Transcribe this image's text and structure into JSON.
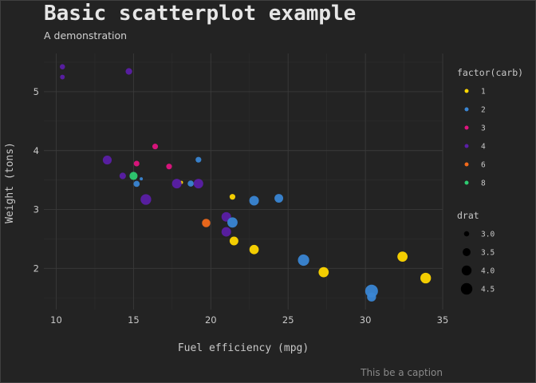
{
  "chart_data": {
    "type": "scatter",
    "title": "Basic scatterplot example",
    "subtitle": "A demonstration",
    "caption": "This be a caption",
    "xlabel": "Fuel efficiency (mpg)",
    "ylabel": "Weight (tons)",
    "xlim": [
      9.2,
      35.0
    ],
    "ylim": [
      1.3,
      5.65
    ],
    "xticks": [
      10,
      15,
      20,
      25,
      30,
      35
    ],
    "yticks": [
      2,
      3,
      4,
      5
    ],
    "grid": true,
    "background": "#232323",
    "grid_major_color": "#3a3a3a",
    "grid_minor_color": "#2e2e2e",
    "text_color": "#c8c8c8",
    "title_color": "#e6e6e6",
    "legend_color": {
      "title": "factor(carb)",
      "position": "right",
      "entries": [
        {
          "label": "1",
          "color": "#FFD700"
        },
        {
          "label": "2",
          "color": "#3A86D4"
        },
        {
          "label": "3",
          "color": "#E0147F"
        },
        {
          "label": "4",
          "color": "#5B1FA6"
        },
        {
          "label": "6",
          "color": "#F26A1B"
        },
        {
          "label": "8",
          "color": "#2ECC71"
        }
      ]
    },
    "legend_size": {
      "title": "drat",
      "position": "right",
      "entries": [
        {
          "label": "3.0",
          "value": 3.0
        },
        {
          "label": "3.5",
          "value": 3.5
        },
        {
          "label": "4.0",
          "value": 4.0
        },
        {
          "label": "4.5",
          "value": 4.5
        }
      ]
    },
    "size_range": [
      2.76,
      4.93
    ],
    "points": [
      {
        "x": 21.0,
        "y": 2.62,
        "carb": "4",
        "drat": 3.9
      },
      {
        "x": 21.0,
        "y": 2.875,
        "carb": "4",
        "drat": 3.9
      },
      {
        "x": 22.8,
        "y": 2.32,
        "carb": "1",
        "drat": 3.85
      },
      {
        "x": 21.4,
        "y": 3.215,
        "carb": "1",
        "drat": 3.08
      },
      {
        "x": 18.7,
        "y": 3.44,
        "carb": "2",
        "drat": 3.15
      },
      {
        "x": 18.1,
        "y": 3.46,
        "carb": "1",
        "drat": 2.76
      },
      {
        "x": 14.3,
        "y": 3.57,
        "carb": "4",
        "drat": 3.21
      },
      {
        "x": 24.4,
        "y": 3.19,
        "carb": "2",
        "drat": 3.69
      },
      {
        "x": 22.8,
        "y": 3.15,
        "carb": "2",
        "drat": 3.92
      },
      {
        "x": 19.2,
        "y": 3.44,
        "carb": "4",
        "drat": 3.92
      },
      {
        "x": 17.8,
        "y": 3.44,
        "carb": "4",
        "drat": 3.92
      },
      {
        "x": 16.4,
        "y": 4.07,
        "carb": "3",
        "drat": 3.07
      },
      {
        "x": 17.3,
        "y": 3.73,
        "carb": "3",
        "drat": 3.07
      },
      {
        "x": 15.2,
        "y": 3.78,
        "carb": "3",
        "drat": 3.07
      },
      {
        "x": 10.4,
        "y": 5.25,
        "carb": "4",
        "drat": 2.93
      },
      {
        "x": 10.4,
        "y": 5.424,
        "carb": "4",
        "drat": 3.0
      },
      {
        "x": 14.7,
        "y": 5.345,
        "carb": "4",
        "drat": 3.23
      },
      {
        "x": 32.4,
        "y": 2.2,
        "carb": "1",
        "drat": 4.08
      },
      {
        "x": 30.4,
        "y": 1.615,
        "carb": "2",
        "drat": 4.93
      },
      {
        "x": 33.9,
        "y": 1.835,
        "carb": "1",
        "drat": 4.22
      },
      {
        "x": 21.5,
        "y": 2.465,
        "carb": "1",
        "drat": 3.7
      },
      {
        "x": 15.5,
        "y": 3.52,
        "carb": "2",
        "drat": 2.76
      },
      {
        "x": 15.2,
        "y": 3.435,
        "carb": "2",
        "drat": 3.15
      },
      {
        "x": 13.3,
        "y": 3.84,
        "carb": "4",
        "drat": 3.73
      },
      {
        "x": 19.2,
        "y": 3.845,
        "carb": "2",
        "drat": 3.08
      },
      {
        "x": 27.3,
        "y": 1.935,
        "carb": "1",
        "drat": 4.08
      },
      {
        "x": 26.0,
        "y": 2.14,
        "carb": "2",
        "drat": 4.43
      },
      {
        "x": 30.4,
        "y": 1.513,
        "carb": "2",
        "drat": 3.77
      },
      {
        "x": 15.8,
        "y": 3.17,
        "carb": "4",
        "drat": 4.22
      },
      {
        "x": 19.7,
        "y": 2.77,
        "carb": "6",
        "drat": 3.62
      },
      {
        "x": 15.0,
        "y": 3.57,
        "carb": "8",
        "drat": 3.54
      },
      {
        "x": 21.4,
        "y": 2.78,
        "carb": "2",
        "drat": 4.11
      }
    ]
  }
}
